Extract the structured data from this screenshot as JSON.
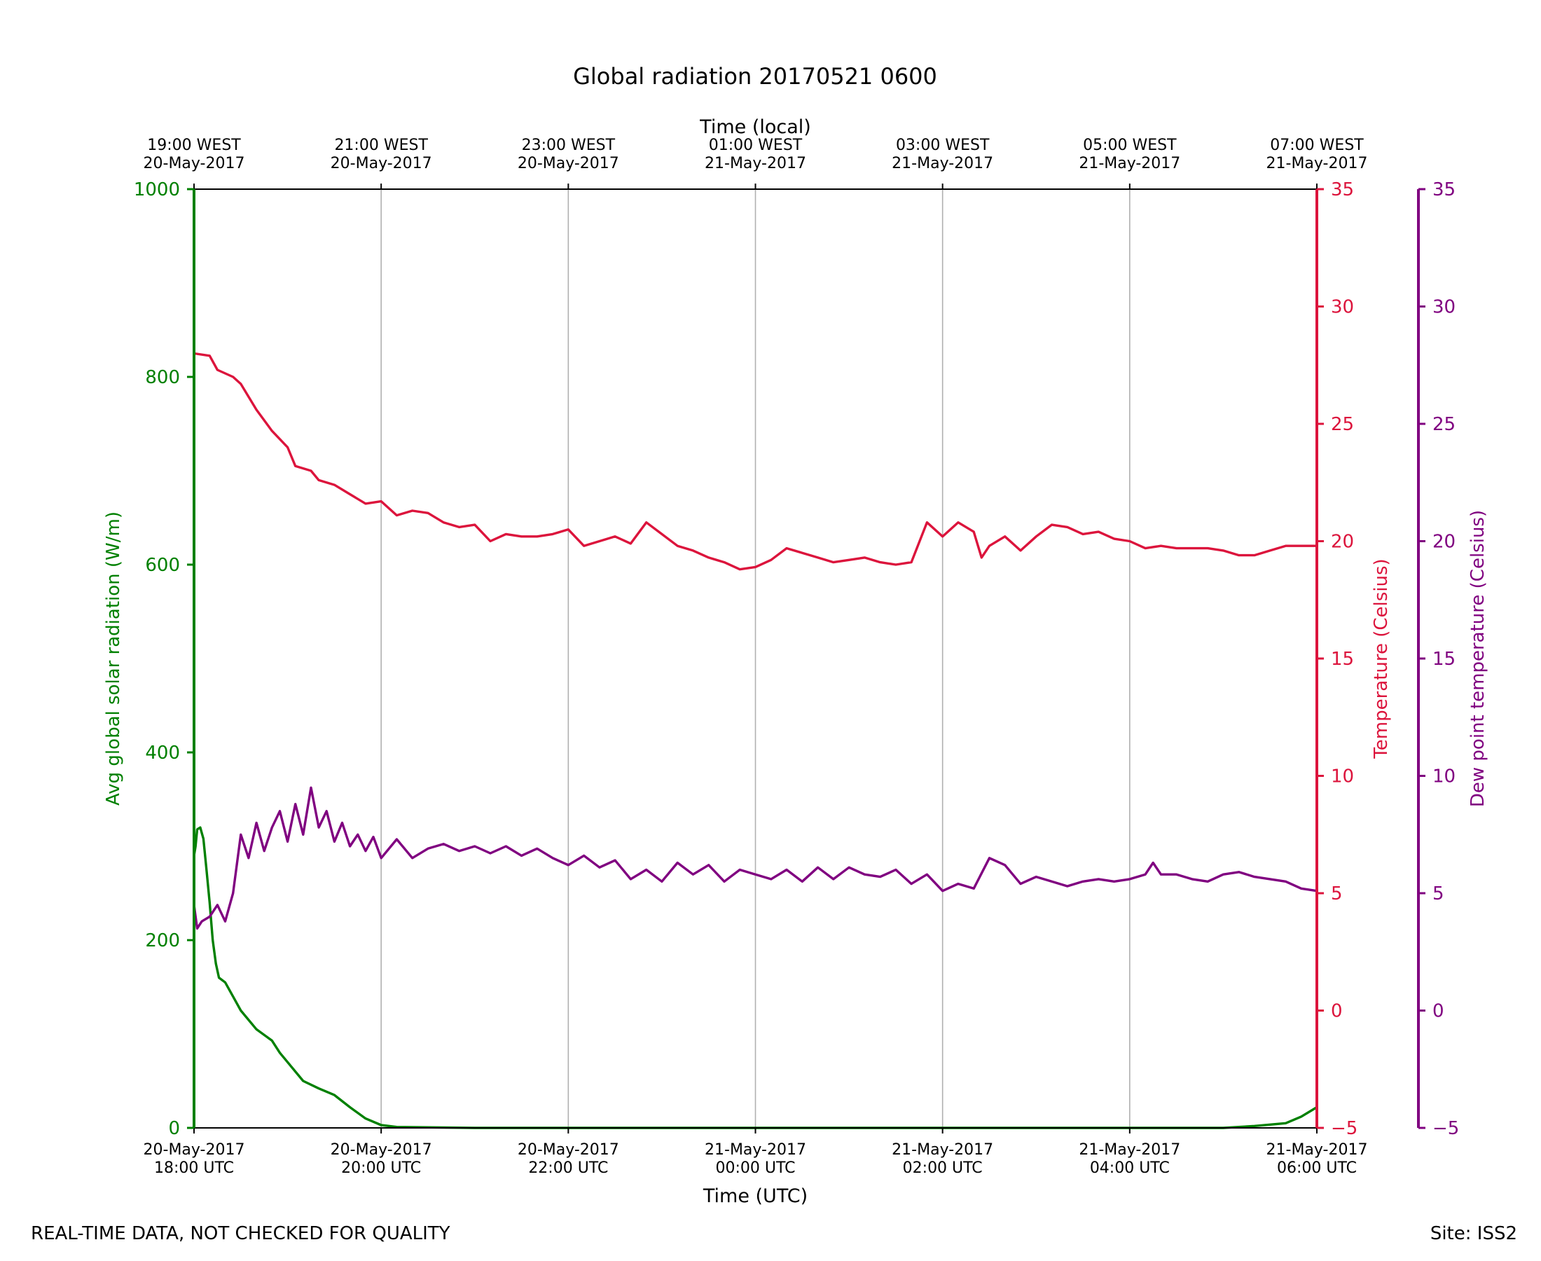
{
  "title": "Global radiation 20170521 0600",
  "footer_left": "REAL-TIME DATA, NOT CHECKED FOR QUALITY",
  "footer_right": "Site: ISS2",
  "colors": {
    "radiation": "#008000",
    "temperature": "#dc143c",
    "dewpoint": "#800080",
    "grid": "#b0b0b0",
    "axis": "#000000"
  },
  "chart_data": {
    "type": "line",
    "title": "Global radiation 20170521 0600",
    "grid": "vertical at major x ticks",
    "xlabel_bottom": "Time (UTC)",
    "xlabel_top": "Time (local)",
    "x_range": [
      "2017-05-20 18:00",
      "2017-05-21 06:00"
    ],
    "x_ticks_bottom": [
      [
        "20-May-2017",
        "18:00 UTC"
      ],
      [
        "20-May-2017",
        "20:00 UTC"
      ],
      [
        "20-May-2017",
        "22:00 UTC"
      ],
      [
        "21-May-2017",
        "00:00 UTC"
      ],
      [
        "21-May-2017",
        "02:00 UTC"
      ],
      [
        "21-May-2017",
        "04:00 UTC"
      ],
      [
        "21-May-2017",
        "06:00 UTC"
      ]
    ],
    "x_ticks_top": [
      [
        "19:00 WEST",
        "20-May-2017"
      ],
      [
        "21:00 WEST",
        "20-May-2017"
      ],
      [
        "23:00 WEST",
        "20-May-2017"
      ],
      [
        "01:00 WEST",
        "21-May-2017"
      ],
      [
        "03:00 WEST",
        "21-May-2017"
      ],
      [
        "05:00 WEST",
        "21-May-2017"
      ],
      [
        "07:00 WEST",
        "21-May-2017"
      ]
    ],
    "y_axes": [
      {
        "key": "radiation",
        "label": "Avg global solar radiation (W/m)",
        "range": [
          0,
          1000
        ],
        "ticks": [
          0,
          200,
          400,
          600,
          800,
          1000
        ],
        "side": "left"
      },
      {
        "key": "temperature",
        "label": "Temperature (Celsius)",
        "range": [
          -5,
          35
        ],
        "ticks": [
          -5,
          0,
          5,
          10,
          15,
          20,
          25,
          30,
          35
        ],
        "side": "right"
      },
      {
        "key": "dewpoint",
        "label": "Dew point temperature (Celsius)",
        "range": [
          -5,
          35
        ],
        "ticks": [
          -5,
          0,
          5,
          10,
          15,
          20,
          25,
          30,
          35
        ],
        "side": "right-outer"
      }
    ],
    "series": [
      {
        "key": "radiation",
        "axis": "radiation",
        "points": [
          [
            "2017-05-20 18:00",
            1000
          ],
          [
            "2017-05-20 18:00",
            290
          ],
          [
            "2017-05-20 18:01",
            300
          ],
          [
            "2017-05-20 18:02",
            318
          ],
          [
            "2017-05-20 18:04",
            320
          ],
          [
            "2017-05-20 18:06",
            308
          ],
          [
            "2017-05-20 18:08",
            275
          ],
          [
            "2017-05-20 18:10",
            240
          ],
          [
            "2017-05-20 18:12",
            200
          ],
          [
            "2017-05-20 18:14",
            175
          ],
          [
            "2017-05-20 18:16",
            160
          ],
          [
            "2017-05-20 18:20",
            155
          ],
          [
            "2017-05-20 18:25",
            140
          ],
          [
            "2017-05-20 18:30",
            125
          ],
          [
            "2017-05-20 18:40",
            105
          ],
          [
            "2017-05-20 18:50",
            93
          ],
          [
            "2017-05-20 18:55",
            80
          ],
          [
            "2017-05-20 19:00",
            70
          ],
          [
            "2017-05-20 19:10",
            50
          ],
          [
            "2017-05-20 19:20",
            42
          ],
          [
            "2017-05-20 19:30",
            35
          ],
          [
            "2017-05-20 19:40",
            22
          ],
          [
            "2017-05-20 19:50",
            10
          ],
          [
            "2017-05-20 20:00",
            3
          ],
          [
            "2017-05-20 20:10",
            1
          ],
          [
            "2017-05-20 21:00",
            0
          ],
          [
            "2017-05-21 03:00",
            0
          ],
          [
            "2017-05-21 05:00",
            0
          ],
          [
            "2017-05-21 05:20",
            2
          ],
          [
            "2017-05-21 05:40",
            5
          ],
          [
            "2017-05-21 05:50",
            12
          ],
          [
            "2017-05-21 06:00",
            22
          ]
        ]
      },
      {
        "key": "temperature",
        "axis": "temperature",
        "points": [
          [
            "2017-05-20 18:00",
            28.0
          ],
          [
            "2017-05-20 18:10",
            27.9
          ],
          [
            "2017-05-20 18:15",
            27.3
          ],
          [
            "2017-05-20 18:25",
            27.0
          ],
          [
            "2017-05-20 18:30",
            26.7
          ],
          [
            "2017-05-20 18:40",
            25.6
          ],
          [
            "2017-05-20 18:50",
            24.7
          ],
          [
            "2017-05-20 19:00",
            24.0
          ],
          [
            "2017-05-20 19:05",
            23.2
          ],
          [
            "2017-05-20 19:15",
            23.0
          ],
          [
            "2017-05-20 19:20",
            22.6
          ],
          [
            "2017-05-20 19:30",
            22.4
          ],
          [
            "2017-05-20 19:40",
            22.0
          ],
          [
            "2017-05-20 19:50",
            21.6
          ],
          [
            "2017-05-20 20:00",
            21.7
          ],
          [
            "2017-05-20 20:10",
            21.1
          ],
          [
            "2017-05-20 20:20",
            21.3
          ],
          [
            "2017-05-20 20:30",
            21.2
          ],
          [
            "2017-05-20 20:40",
            20.8
          ],
          [
            "2017-05-20 20:50",
            20.6
          ],
          [
            "2017-05-20 21:00",
            20.7
          ],
          [
            "2017-05-20 21:10",
            20.0
          ],
          [
            "2017-05-20 21:20",
            20.3
          ],
          [
            "2017-05-20 21:30",
            20.2
          ],
          [
            "2017-05-20 21:40",
            20.2
          ],
          [
            "2017-05-20 21:50",
            20.3
          ],
          [
            "2017-05-20 22:00",
            20.5
          ],
          [
            "2017-05-20 22:10",
            19.8
          ],
          [
            "2017-05-20 22:20",
            20.0
          ],
          [
            "2017-05-20 22:30",
            20.2
          ],
          [
            "2017-05-20 22:40",
            19.9
          ],
          [
            "2017-05-20 22:50",
            20.8
          ],
          [
            "2017-05-20 23:00",
            20.3
          ],
          [
            "2017-05-20 23:10",
            19.8
          ],
          [
            "2017-05-20 23:20",
            19.6
          ],
          [
            "2017-05-20 23:30",
            19.3
          ],
          [
            "2017-05-20 23:40",
            19.1
          ],
          [
            "2017-05-20 23:50",
            18.8
          ],
          [
            "2017-05-21 00:00",
            18.9
          ],
          [
            "2017-05-21 00:10",
            19.2
          ],
          [
            "2017-05-21 00:20",
            19.7
          ],
          [
            "2017-05-21 00:30",
            19.5
          ],
          [
            "2017-05-21 00:40",
            19.3
          ],
          [
            "2017-05-21 00:50",
            19.1
          ],
          [
            "2017-05-21 01:00",
            19.2
          ],
          [
            "2017-05-21 01:10",
            19.3
          ],
          [
            "2017-05-21 01:20",
            19.1
          ],
          [
            "2017-05-21 01:30",
            19.0
          ],
          [
            "2017-05-21 01:40",
            19.1
          ],
          [
            "2017-05-21 01:50",
            20.8
          ],
          [
            "2017-05-21 02:00",
            20.2
          ],
          [
            "2017-05-21 02:10",
            20.8
          ],
          [
            "2017-05-21 02:20",
            20.4
          ],
          [
            "2017-05-21 02:25",
            19.3
          ],
          [
            "2017-05-21 02:30",
            19.8
          ],
          [
            "2017-05-21 02:40",
            20.2
          ],
          [
            "2017-05-21 02:50",
            19.6
          ],
          [
            "2017-05-21 03:00",
            20.2
          ],
          [
            "2017-05-21 03:10",
            20.7
          ],
          [
            "2017-05-21 03:20",
            20.6
          ],
          [
            "2017-05-21 03:30",
            20.3
          ],
          [
            "2017-05-21 03:40",
            20.4
          ],
          [
            "2017-05-21 03:50",
            20.1
          ],
          [
            "2017-05-21 04:00",
            20.0
          ],
          [
            "2017-05-21 04:10",
            19.7
          ],
          [
            "2017-05-21 04:20",
            19.8
          ],
          [
            "2017-05-21 04:30",
            19.7
          ],
          [
            "2017-05-21 04:40",
            19.7
          ],
          [
            "2017-05-21 04:50",
            19.7
          ],
          [
            "2017-05-21 05:00",
            19.6
          ],
          [
            "2017-05-21 05:10",
            19.4
          ],
          [
            "2017-05-21 05:20",
            19.4
          ],
          [
            "2017-05-21 05:30",
            19.6
          ],
          [
            "2017-05-21 05:40",
            19.8
          ],
          [
            "2017-05-21 05:50",
            19.8
          ],
          [
            "2017-05-21 06:00",
            19.8
          ]
        ]
      },
      {
        "key": "dewpoint",
        "axis": "dewpoint",
        "points": [
          [
            "2017-05-20 18:00",
            4.5
          ],
          [
            "2017-05-20 18:02",
            3.5
          ],
          [
            "2017-05-20 18:05",
            3.8
          ],
          [
            "2017-05-20 18:10",
            4.0
          ],
          [
            "2017-05-20 18:15",
            4.5
          ],
          [
            "2017-05-20 18:20",
            3.8
          ],
          [
            "2017-05-20 18:25",
            5.0
          ],
          [
            "2017-05-20 18:30",
            7.5
          ],
          [
            "2017-05-20 18:35",
            6.5
          ],
          [
            "2017-05-20 18:40",
            8.0
          ],
          [
            "2017-05-20 18:45",
            6.8
          ],
          [
            "2017-05-20 18:50",
            7.8
          ],
          [
            "2017-05-20 18:55",
            8.5
          ],
          [
            "2017-05-20 19:00",
            7.2
          ],
          [
            "2017-05-20 19:05",
            8.8
          ],
          [
            "2017-05-20 19:10",
            7.5
          ],
          [
            "2017-05-20 19:15",
            9.5
          ],
          [
            "2017-05-20 19:20",
            7.8
          ],
          [
            "2017-05-20 19:25",
            8.5
          ],
          [
            "2017-05-20 19:30",
            7.2
          ],
          [
            "2017-05-20 19:35",
            8.0
          ],
          [
            "2017-05-20 19:40",
            7.0
          ],
          [
            "2017-05-20 19:45",
            7.5
          ],
          [
            "2017-05-20 19:50",
            6.8
          ],
          [
            "2017-05-20 19:55",
            7.4
          ],
          [
            "2017-05-20 20:00",
            6.5
          ],
          [
            "2017-05-20 20:10",
            7.3
          ],
          [
            "2017-05-20 20:20",
            6.5
          ],
          [
            "2017-05-20 20:30",
            6.9
          ],
          [
            "2017-05-20 20:40",
            7.1
          ],
          [
            "2017-05-20 20:50",
            6.8
          ],
          [
            "2017-05-20 21:00",
            7.0
          ],
          [
            "2017-05-20 21:10",
            6.7
          ],
          [
            "2017-05-20 21:20",
            7.0
          ],
          [
            "2017-05-20 21:30",
            6.6
          ],
          [
            "2017-05-20 21:40",
            6.9
          ],
          [
            "2017-05-20 21:50",
            6.5
          ],
          [
            "2017-05-20 22:00",
            6.2
          ],
          [
            "2017-05-20 22:10",
            6.6
          ],
          [
            "2017-05-20 22:20",
            6.1
          ],
          [
            "2017-05-20 22:30",
            6.4
          ],
          [
            "2017-05-20 22:40",
            5.6
          ],
          [
            "2017-05-20 22:50",
            6.0
          ],
          [
            "2017-05-20 23:00",
            5.5
          ],
          [
            "2017-05-20 23:10",
            6.3
          ],
          [
            "2017-05-20 23:20",
            5.8
          ],
          [
            "2017-05-20 23:30",
            6.2
          ],
          [
            "2017-05-20 23:40",
            5.5
          ],
          [
            "2017-05-20 23:50",
            6.0
          ],
          [
            "2017-05-21 00:00",
            5.8
          ],
          [
            "2017-05-21 00:10",
            5.6
          ],
          [
            "2017-05-21 00:20",
            6.0
          ],
          [
            "2017-05-21 00:30",
            5.5
          ],
          [
            "2017-05-21 00:40",
            6.1
          ],
          [
            "2017-05-21 00:50",
            5.6
          ],
          [
            "2017-05-21 01:00",
            6.1
          ],
          [
            "2017-05-21 01:10",
            5.8
          ],
          [
            "2017-05-21 01:20",
            5.7
          ],
          [
            "2017-05-21 01:30",
            6.0
          ],
          [
            "2017-05-21 01:40",
            5.4
          ],
          [
            "2017-05-21 01:50",
            5.8
          ],
          [
            "2017-05-21 02:00",
            5.1
          ],
          [
            "2017-05-21 02:10",
            5.4
          ],
          [
            "2017-05-21 02:20",
            5.2
          ],
          [
            "2017-05-21 02:30",
            6.5
          ],
          [
            "2017-05-21 02:40",
            6.2
          ],
          [
            "2017-05-21 02:50",
            5.4
          ],
          [
            "2017-05-21 03:00",
            5.7
          ],
          [
            "2017-05-21 03:10",
            5.5
          ],
          [
            "2017-05-21 03:20",
            5.3
          ],
          [
            "2017-05-21 03:30",
            5.5
          ],
          [
            "2017-05-21 03:40",
            5.6
          ],
          [
            "2017-05-21 03:50",
            5.5
          ],
          [
            "2017-05-21 04:00",
            5.6
          ],
          [
            "2017-05-21 04:10",
            5.8
          ],
          [
            "2017-05-21 04:15",
            6.3
          ],
          [
            "2017-05-21 04:20",
            5.8
          ],
          [
            "2017-05-21 04:30",
            5.8
          ],
          [
            "2017-05-21 04:40",
            5.6
          ],
          [
            "2017-05-21 04:50",
            5.5
          ],
          [
            "2017-05-21 05:00",
            5.8
          ],
          [
            "2017-05-21 05:10",
            5.9
          ],
          [
            "2017-05-21 05:20",
            5.7
          ],
          [
            "2017-05-21 05:30",
            5.6
          ],
          [
            "2017-05-21 05:40",
            5.5
          ],
          [
            "2017-05-21 05:50",
            5.2
          ],
          [
            "2017-05-21 06:00",
            5.1
          ]
        ]
      }
    ]
  }
}
